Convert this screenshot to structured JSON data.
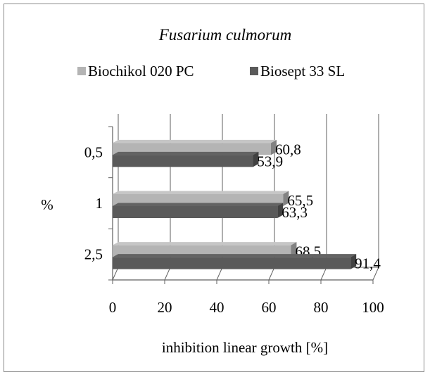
{
  "chart_data": {
    "type": "bar",
    "orientation": "horizontal",
    "style": "3d",
    "title": "Fusarium culmorum",
    "xlabel": "inhibition linear growth [%]",
    "ylabel": "%",
    "categories": [
      "0,5",
      "1",
      "2,5"
    ],
    "series": [
      {
        "name": "Biochikol 020 PC",
        "values": [
          60.8,
          65.5,
          68.5
        ],
        "labels": [
          "60,8",
          "65,5",
          "68,5"
        ],
        "color": "#b4b4b4"
      },
      {
        "name": "Biosept 33 SL",
        "values": [
          53.9,
          63.3,
          91.4
        ],
        "labels": [
          "53,9",
          "63,3",
          "91,4"
        ],
        "color": "#5a5a5a"
      }
    ],
    "xlim": [
      0,
      100
    ],
    "xticks": [
      "0",
      "20",
      "40",
      "60",
      "80",
      "100"
    ],
    "grid": true,
    "legend": "top"
  }
}
